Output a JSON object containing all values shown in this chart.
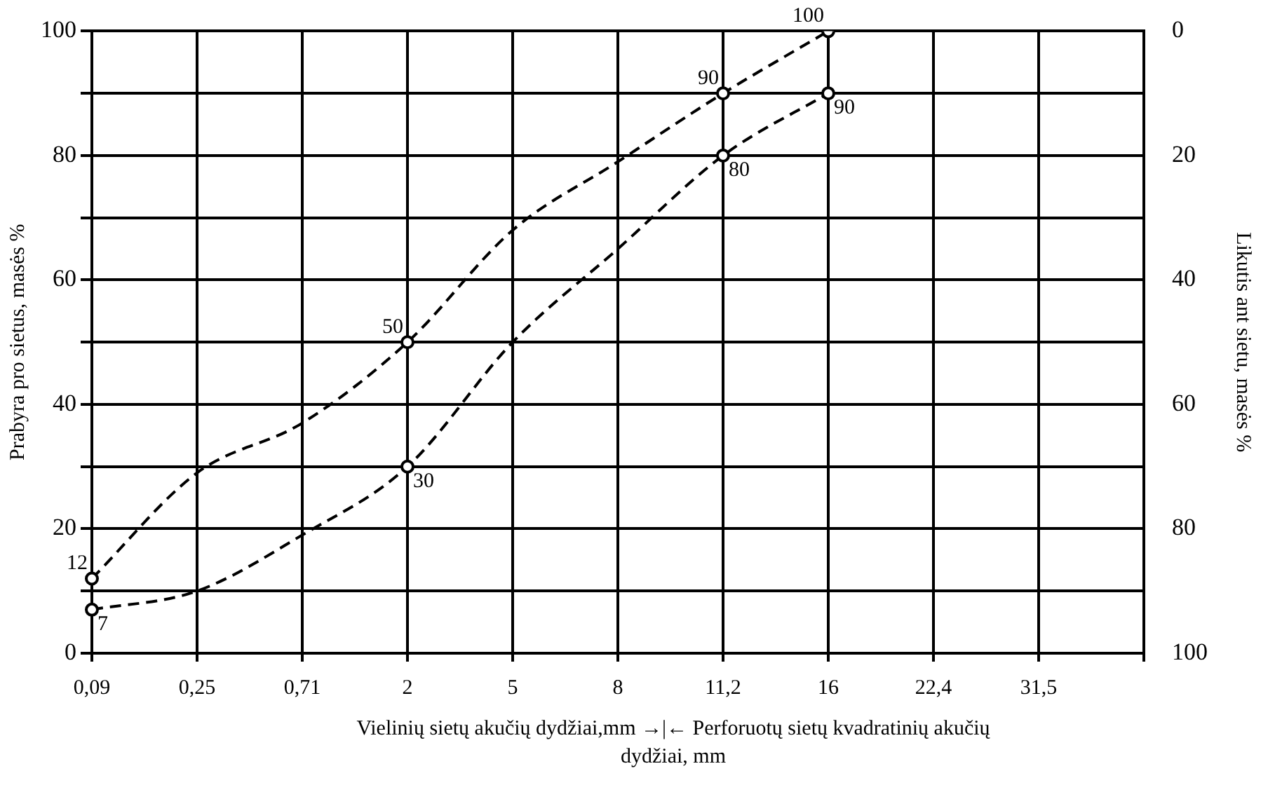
{
  "chart_data": {
    "type": "line",
    "xlabel": "Vielinių sietų akučių dydžiai,mm →|← Perforuotų sietų kvadratinių   akučių dydžiai, mm",
    "ylabel": "Prabyra pro sietus, masės %",
    "y2label": "Likutis ant sietu, masės %",
    "categories": [
      "0,09",
      "0,25",
      "0,71",
      "2",
      "5",
      "8",
      "11,2",
      "16",
      "22,4",
      "31,5",
      null
    ],
    "series": [
      {
        "color": "#000000",
        "values": [
          12,
          29,
          37,
          50,
          68,
          79,
          90,
          100,
          null,
          null,
          null
        ],
        "value_labels": [
          "12",
          null,
          null,
          "50",
          null,
          null,
          "90",
          "100",
          null,
          null,
          null
        ]
      },
      {
        "color": "#000000",
        "values": [
          7,
          10,
          19,
          30,
          50,
          65,
          80,
          90,
          null,
          null,
          null
        ],
        "value_labels": [
          "7",
          null,
          null,
          "30",
          null,
          null,
          "80",
          "90",
          null,
          null,
          null
        ]
      }
    ],
    "ylim": [
      0,
      100
    ],
    "yticks": [
      0,
      {
        "value": 10,
        "label": null
      },
      20,
      {
        "value": 30,
        "label": null
      },
      40,
      {
        "value": 50,
        "label": null
      },
      60,
      {
        "value": 70,
        "label": null
      },
      80,
      {
        "value": 90,
        "label": null
      },
      100
    ],
    "y2lim": [
      100,
      0
    ],
    "y2ticks": [
      0,
      20,
      40,
      60,
      80,
      100
    ],
    "grid": true,
    "legend": false,
    "marker": "circle",
    "line_style": "dashed"
  }
}
